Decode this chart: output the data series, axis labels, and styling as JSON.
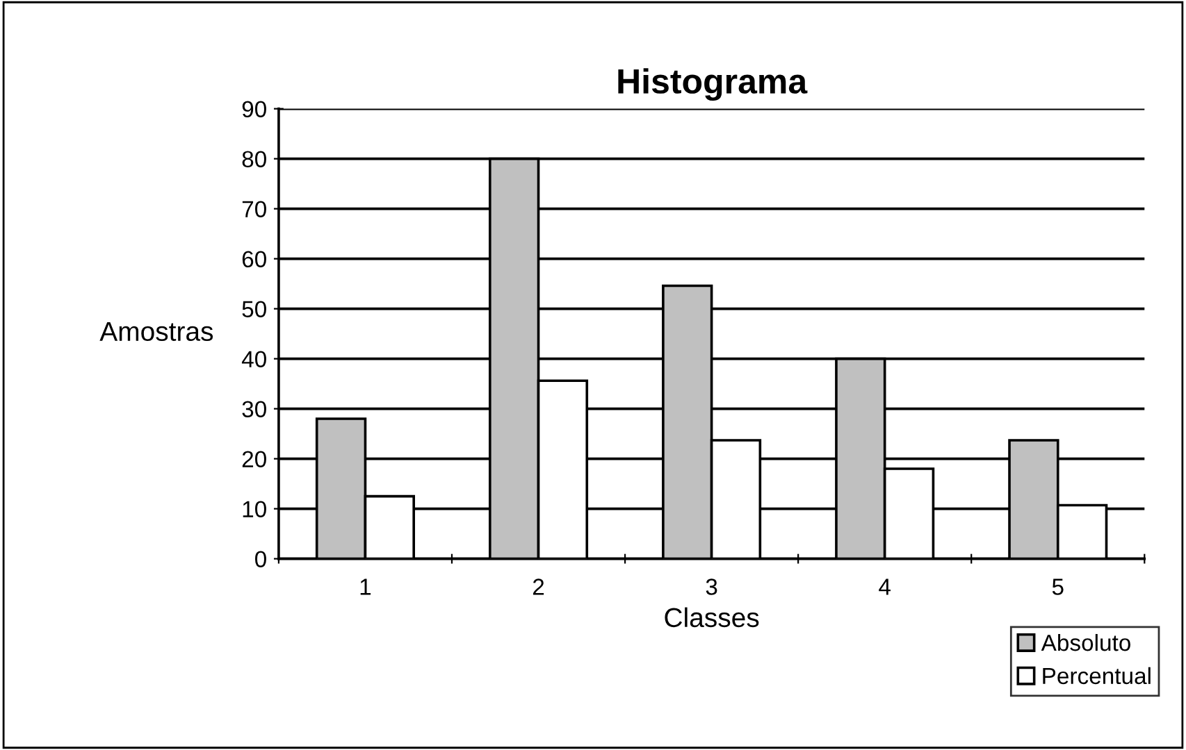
{
  "chart_data": {
    "type": "bar",
    "title": "Histograma",
    "xlabel": "Classes",
    "ylabel": "Amostras",
    "categories": [
      "1",
      "2",
      "3",
      "4",
      "5"
    ],
    "series": [
      {
        "name": "Absoluto",
        "color": "#c0c0c0",
        "values": [
          28,
          80,
          54.6,
          40,
          23.7
        ]
      },
      {
        "name": "Percentual",
        "color": "#ffffff",
        "values": [
          12.5,
          35.6,
          23.7,
          18,
          10.7
        ]
      }
    ],
    "ylim": [
      0,
      90
    ],
    "yticks": [
      0,
      10,
      20,
      30,
      40,
      50,
      60,
      70,
      80,
      90
    ],
    "grid": "y",
    "legend": "bottom right"
  }
}
